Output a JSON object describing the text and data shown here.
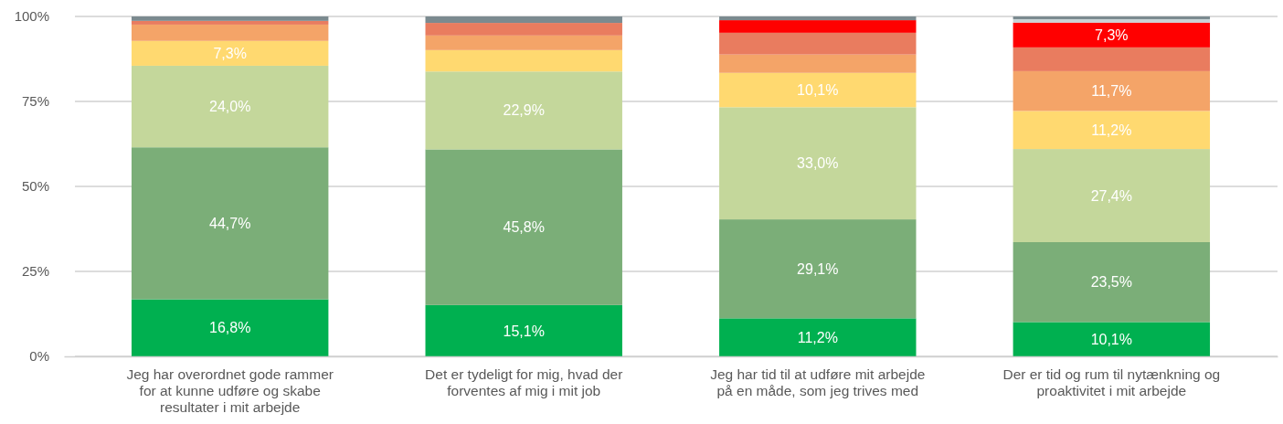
{
  "chart_data": {
    "type": "bar",
    "stacked": true,
    "grid": "y",
    "categories": [
      "Jeg har overordnet gode rammer for at kunne udføre og skabe resultater i mit arbejde",
      "Det er tydeligt for mig, hvad der forventes af mig i mit job",
      "Jeg har tid til at udføre mit arbejde på en måde, som jeg trives med",
      "Der er tid og rum til nytænkning og proaktivitet i mit arbejde"
    ],
    "ylim": [
      0,
      100
    ],
    "yticks": [
      {
        "value": 0,
        "label": "0%"
      },
      {
        "value": 25,
        "label": "25%"
      },
      {
        "value": 50,
        "label": "50%"
      },
      {
        "value": 75,
        "label": "75%"
      },
      {
        "value": 100,
        "label": "100%"
      }
    ],
    "series": [
      {
        "color": "#00b050",
        "values": [
          16.8,
          15.1,
          11.2,
          10.1
        ],
        "value_labels": [
          "16,8%",
          "15,1%",
          "11,2%",
          "10,1%"
        ]
      },
      {
        "color": "#7bae78",
        "values": [
          44.7,
          45.8,
          29.1,
          23.5
        ],
        "value_labels": [
          "44,7%",
          "45,8%",
          "29,1%",
          "23,5%"
        ]
      },
      {
        "color": "#c4d79b",
        "values": [
          24.0,
          22.9,
          33.0,
          27.4
        ],
        "value_labels": [
          "24,0%",
          "22,9%",
          "33,0%",
          "27,4%"
        ]
      },
      {
        "color": "#ffd970",
        "values": [
          7.3,
          6.3,
          10.1,
          11.2
        ],
        "value_labels": [
          "7,3%",
          null,
          "10,1%",
          "11,2%"
        ]
      },
      {
        "color": "#f4a468",
        "values": [
          4.8,
          4.3,
          5.4,
          11.7
        ],
        "value_labels": [
          null,
          null,
          null,
          "11,7%"
        ]
      },
      {
        "color": "#e97c5f",
        "values": [
          1.1,
          3.7,
          6.4,
          7.0
        ],
        "value_labels": [
          null,
          null,
          null,
          null
        ]
      },
      {
        "color": "#ff0000",
        "values": [
          0,
          0,
          3.7,
          7.3
        ],
        "value_labels": [
          null,
          null,
          null,
          "7,3%"
        ]
      },
      {
        "color": "#c8d3d6",
        "values": [
          0,
          0,
          0,
          1.0
        ],
        "value_labels": [
          null,
          null,
          null,
          null
        ]
      },
      {
        "color": "#7b8a8f",
        "values": [
          1.3,
          1.9,
          1.1,
          0.8
        ],
        "value_labels": [
          null,
          null,
          null,
          null
        ]
      }
    ]
  }
}
